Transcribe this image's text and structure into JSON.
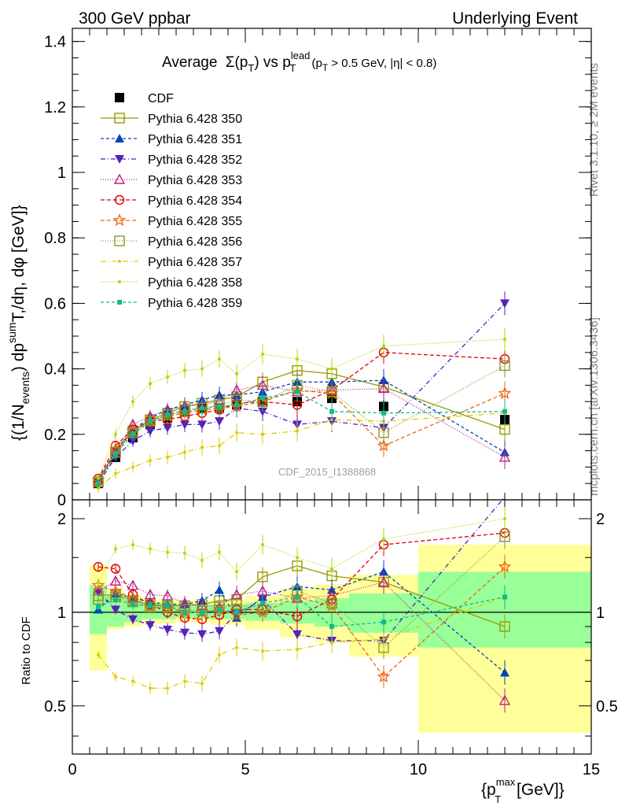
{
  "header": {
    "left": "300 GeV ppbar",
    "right": "Underlying Event"
  },
  "side_labels": {
    "rivet": "Rivet 3.1.10, ≥ 2M events",
    "mcplots": "mcplots.cern.ch [arXiv:1306.3436]"
  },
  "watermark": "CDF_2015_I1388868",
  "chart_data": [
    {
      "type": "scatter",
      "title": "Average Σ(pT) vs pT^lead (pT > 0.5 GeV, |η| < 0.8)",
      "title_parts": {
        "a": "Average",
        "b": "Σ(p",
        "sub1": "T",
        "c": ") vs p",
        "sup2": "lead",
        "sub2": "T",
        "d": " (p",
        "sub3": "T",
        "e": " > 0.5 GeV, |η| < 0.8)"
      },
      "ylabel": "{(1/N_events) dp^sum T,/dη, dφ [GeV]}",
      "ylabel_parts": {
        "a": "{(1/N",
        "sub": "events",
        "b": ") dp",
        "sup": "sum",
        "c": "T,/dη, dφ [GeV]}"
      },
      "xlim": [
        0,
        15
      ],
      "ylim": [
        0,
        1.44
      ],
      "yticks": [
        0,
        0.2,
        0.4,
        0.6,
        0.8,
        1,
        1.2,
        1.4
      ],
      "ytick_labels": [
        "0",
        "0.2",
        "0.4",
        "0.6",
        "0.8",
        "1",
        "1.2",
        "1.4"
      ],
      "grid": false,
      "legend_position": "top-left",
      "x": [
        0.75,
        1.25,
        1.75,
        2.25,
        2.75,
        3.25,
        3.75,
        4.25,
        4.75,
        5.5,
        6.5,
        7.5,
        9.0,
        12.5
      ],
      "series": [
        {
          "name": "CDF",
          "marker": "square-filled",
          "color": "#000000",
          "dash": "none",
          "values": [
            0.05,
            0.13,
            0.19,
            0.23,
            0.25,
            0.27,
            0.28,
            0.28,
            0.29,
            0.3,
            0.3,
            0.31,
            0.285,
            0.245
          ]
        },
        {
          "name": "Pythia 6.428 350",
          "marker": "square-open",
          "color": "#999900",
          "dash": "solid",
          "values": [
            0.055,
            0.145,
            0.21,
            0.245,
            0.265,
            0.285,
            0.295,
            0.305,
            0.315,
            0.36,
            0.395,
            0.385,
            0.345,
            0.215
          ]
        },
        {
          "name": "Pythia 6.428 351",
          "marker": "triangle-up-filled",
          "color": "#0044bb",
          "dash": "4,3",
          "values": [
            0.055,
            0.15,
            0.215,
            0.25,
            0.275,
            0.29,
            0.305,
            0.32,
            0.32,
            0.33,
            0.36,
            0.36,
            0.365,
            0.145
          ]
        },
        {
          "name": "Pythia 6.428 352",
          "marker": "triangle-down-filled",
          "color": "#5522bb",
          "dash": "6,3,1,3",
          "values": [
            0.05,
            0.13,
            0.18,
            0.21,
            0.22,
            0.23,
            0.23,
            0.24,
            0.28,
            0.27,
            0.23,
            0.24,
            0.22,
            0.6
          ]
        },
        {
          "name": "Pythia 6.428 353",
          "marker": "triangle-up-open",
          "color": "#bb2288",
          "dash": "1,2",
          "values": [
            0.055,
            0.155,
            0.23,
            0.255,
            0.275,
            0.285,
            0.29,
            0.3,
            0.335,
            0.35,
            0.33,
            0.335,
            0.34,
            0.13
          ]
        },
        {
          "name": "Pythia 6.428 354",
          "marker": "circle-open",
          "color": "#dd0000",
          "dash": "5,3",
          "values": [
            0.065,
            0.165,
            0.215,
            0.24,
            0.245,
            0.255,
            0.265,
            0.275,
            0.295,
            0.3,
            0.29,
            0.335,
            0.45,
            0.43
          ]
        },
        {
          "name": "Pythia 6.428 355",
          "marker": "star-open",
          "color": "#ee6611",
          "dash": "5,3",
          "values": [
            0.06,
            0.155,
            0.21,
            0.24,
            0.255,
            0.265,
            0.275,
            0.28,
            0.285,
            0.3,
            0.335,
            0.325,
            0.165,
            0.325
          ]
        },
        {
          "name": "Pythia 6.428 356",
          "marker": "square-open",
          "color": "#889922",
          "dash": "1,2",
          "values": [
            0.055,
            0.145,
            0.205,
            0.24,
            0.26,
            0.275,
            0.28,
            0.29,
            0.305,
            0.3,
            0.35,
            0.33,
            0.205,
            0.41
          ]
        },
        {
          "name": "Pythia 6.428 357",
          "marker": "dot-filled",
          "color": "#ddcc00",
          "dash": "7,3,1,3",
          "values": [
            0.035,
            0.08,
            0.1,
            0.12,
            0.13,
            0.145,
            0.16,
            0.165,
            0.205,
            0.2,
            0.21,
            0.245,
            0.24,
            0.265
          ]
        },
        {
          "name": "Pythia 6.428 358",
          "marker": "dot-filled",
          "color": "#aadd00",
          "dash": "1,2",
          "values": [
            0.065,
            0.2,
            0.3,
            0.355,
            0.375,
            0.395,
            0.4,
            0.43,
            0.385,
            0.445,
            0.43,
            0.4,
            0.47,
            0.49
          ]
        },
        {
          "name": "Pythia 6.428 359",
          "marker": "square-filled-small",
          "color": "#11bb88",
          "dash": "4,3",
          "values": [
            0.05,
            0.14,
            0.2,
            0.24,
            0.26,
            0.27,
            0.28,
            0.285,
            0.29,
            0.31,
            0.33,
            0.27,
            0.265,
            0.27
          ]
        }
      ]
    },
    {
      "type": "scatter",
      "title": "",
      "ylabel": "Ratio to CDF",
      "xlabel": "{p_T^max [GeV]}",
      "xlabel_parts": {
        "a": "{p",
        "sup": "max",
        "sub": "T",
        "b": " [GeV]}"
      },
      "xlim": [
        0,
        15
      ],
      "ylim": [
        0.35,
        2.3
      ],
      "xticks": [
        0,
        5,
        10,
        15
      ],
      "xtick_labels": [
        "0",
        "5",
        "10",
        "15"
      ],
      "yticks": [
        0.5,
        1,
        2
      ],
      "ytick_labels": [
        "0.5",
        "1",
        "2"
      ],
      "reference_line": 1,
      "bands": [
        {
          "from": 0.5,
          "to": 1.0,
          "inner": [
            0.85,
            1.22
          ],
          "outer": [
            0.65,
            1.42
          ]
        },
        {
          "from": 1.0,
          "to": 1.5,
          "inner": [
            0.9,
            1.14
          ],
          "outer": [
            0.88,
            1.18
          ]
        },
        {
          "from": 1.5,
          "to": 2.0,
          "inner": [
            0.93,
            1.1
          ],
          "outer": [
            0.9,
            1.14
          ]
        },
        {
          "from": 2.0,
          "to": 3.0,
          "inner": [
            0.95,
            1.07
          ],
          "outer": [
            0.92,
            1.1
          ]
        },
        {
          "from": 3.0,
          "to": 4.0,
          "inner": [
            0.96,
            1.06
          ],
          "outer": [
            0.93,
            1.09
          ]
        },
        {
          "from": 4.0,
          "to": 5.0,
          "inner": [
            0.95,
            1.06
          ],
          "outer": [
            0.91,
            1.1
          ]
        },
        {
          "from": 5.0,
          "to": 6.0,
          "inner": [
            0.94,
            1.07
          ],
          "outer": [
            0.88,
            1.13
          ]
        },
        {
          "from": 6.0,
          "to": 7.0,
          "inner": [
            0.92,
            1.09
          ],
          "outer": [
            0.83,
            1.19
          ]
        },
        {
          "from": 7.0,
          "to": 8.0,
          "inner": [
            0.9,
            1.11
          ],
          "outer": [
            0.8,
            1.23
          ]
        },
        {
          "from": 8.0,
          "to": 10.0,
          "inner": [
            0.86,
            1.15
          ],
          "outer": [
            0.72,
            1.32
          ]
        },
        {
          "from": 10.0,
          "to": 15.0,
          "inner": [
            0.77,
            1.35
          ],
          "outer": [
            0.41,
            1.65
          ]
        }
      ],
      "x": [
        0.75,
        1.25,
        1.75,
        2.25,
        2.75,
        3.25,
        3.75,
        4.25,
        4.75,
        5.5,
        6.5,
        7.5,
        9.0,
        12.5
      ],
      "series": [
        {
          "name": "Pythia 6.428 350",
          "values": [
            1.13,
            1.14,
            1.09,
            1.06,
            1.05,
            1.05,
            1.06,
            1.09,
            1.1,
            1.3,
            1.41,
            1.31,
            1.25,
            0.9
          ]
        },
        {
          "name": "Pythia 6.428 351",
          "values": [
            1.02,
            1.15,
            1.11,
            1.08,
            1.06,
            1.06,
            1.09,
            1.18,
            0.96,
            1.12,
            1.21,
            1.18,
            1.35,
            0.64
          ]
        },
        {
          "name": "Pythia 6.428 352",
          "values": [
            1.16,
            1.02,
            0.95,
            0.91,
            0.88,
            0.86,
            0.85,
            0.87,
            0.99,
            1.1,
            0.85,
            0.81,
            0.81,
            2.35
          ]
        },
        {
          "name": "Pythia 6.428 353",
          "values": [
            1.17,
            1.26,
            1.22,
            1.14,
            1.13,
            1.07,
            1.05,
            1.04,
            1.14,
            1.17,
            1.11,
            1.13,
            1.25,
            0.52
          ]
        },
        {
          "name": "Pythia 6.428 354",
          "values": [
            1.4,
            1.38,
            1.14,
            1.06,
            1.0,
            0.96,
            0.95,
            0.98,
            1.02,
            1.02,
            0.97,
            1.1,
            1.65,
            1.8
          ]
        },
        {
          "name": "Pythia 6.428 355",
          "values": [
            1.22,
            1.17,
            1.11,
            1.04,
            1.03,
            1.0,
            1.0,
            1.02,
            0.98,
            1.0,
            1.12,
            1.05,
            0.62,
            1.4
          ]
        },
        {
          "name": "Pythia 6.428 356",
          "values": [
            1.1,
            1.12,
            1.08,
            1.04,
            1.04,
            1.02,
            1.01,
            1.04,
            1.06,
            1.02,
            1.17,
            1.07,
            0.77,
            1.75
          ]
        },
        {
          "name": "Pythia 6.428 357",
          "values": [
            0.73,
            0.62,
            0.6,
            0.57,
            0.57,
            0.6,
            0.59,
            0.73,
            0.77,
            0.75,
            0.76,
            0.8,
            0.82,
            1.12
          ]
        },
        {
          "name": "Pythia 6.428 358",
          "values": [
            1.25,
            1.6,
            1.65,
            1.6,
            1.56,
            1.55,
            1.47,
            1.56,
            1.35,
            1.65,
            1.5,
            1.38,
            1.72,
            2.0
          ]
        },
        {
          "name": "Pythia 6.428 359",
          "values": [
            1.04,
            1.1,
            1.06,
            1.05,
            1.05,
            1.0,
            1.0,
            1.02,
            1.0,
            1.07,
            1.12,
            0.9,
            0.93,
            1.12
          ]
        }
      ]
    }
  ]
}
